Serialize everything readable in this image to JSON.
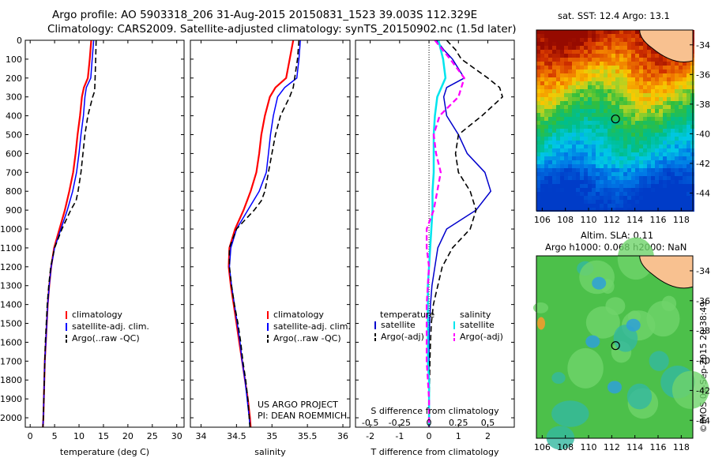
{
  "header": {
    "line1": "Argo profile: AO 5903318_206 31-Aug-2015 20150831_1523 39.003S 112.329E",
    "line2": "Climatology: CARS2009. Satellite-adjusted climatology: synTS_20150902.nc (1.5d later)"
  },
  "colors": {
    "climatology": "#ff0000",
    "satellite": "#0000ff",
    "argo": "#000000",
    "temp_diff_sat": "#0000cc",
    "sal_diff_sat": "#00e5ee",
    "sal_diff_argo": "#ff00ff",
    "land": "#f8c190"
  },
  "chart_data": [
    {
      "type": "line",
      "panel": "temperature",
      "xlabel": "temperature (deg C)",
      "ylabel": "",
      "xlim": [
        -1,
        31.5
      ],
      "ylim": [
        2050,
        0
      ],
      "xticks": [
        0,
        5,
        10,
        15,
        20,
        25,
        30
      ],
      "yticks": [
        0,
        100,
        200,
        300,
        400,
        500,
        600,
        700,
        800,
        900,
        1000,
        1100,
        1200,
        1300,
        1400,
        1500,
        1600,
        1700,
        1800,
        1900,
        2000
      ],
      "legend": [
        "climatology",
        "satellite-adj. clim.",
        "Argo(..raw -QC)"
      ],
      "series": [
        {
          "name": "climatology",
          "depth": [
            0,
            100,
            200,
            250,
            300,
            400,
            500,
            600,
            700,
            800,
            900,
            1000,
            1100,
            1200,
            1300,
            1400,
            1500,
            1600,
            1700,
            1800,
            1900,
            2000,
            2050
          ],
          "values": [
            12.5,
            12.2,
            11.8,
            11.0,
            10.6,
            10.2,
            9.7,
            9.3,
            8.8,
            8.0,
            7.1,
            6.0,
            4.9,
            4.3,
            3.9,
            3.6,
            3.4,
            3.2,
            3.0,
            2.9,
            2.8,
            2.7,
            2.6
          ]
        },
        {
          "name": "satellite-adj. clim.",
          "depth": [
            0,
            100,
            200,
            250,
            300,
            400,
            500,
            600,
            700,
            800,
            900,
            1000,
            1100,
            1200,
            1300,
            1400,
            1500,
            1600,
            1700,
            1800,
            1900,
            2000,
            2050
          ],
          "values": [
            13.0,
            12.7,
            12.4,
            11.5,
            11.2,
            10.9,
            10.4,
            10.0,
            9.5,
            8.7,
            7.6,
            6.3,
            5.0,
            4.3,
            3.9,
            3.6,
            3.4,
            3.2,
            3.0,
            2.9,
            2.8,
            2.7,
            2.6
          ]
        },
        {
          "name": "Argo(..raw -QC)",
          "depth": [
            0,
            100,
            200,
            270,
            300,
            400,
            500,
            600,
            700,
            800,
            850,
            900,
            1000,
            1100,
            1200,
            1300,
            1400,
            1500,
            1600,
            1700,
            1800,
            1900,
            2000,
            2050
          ],
          "values": [
            13.5,
            13.4,
            13.3,
            13.2,
            12.8,
            11.8,
            11.2,
            10.8,
            10.4,
            9.8,
            9.4,
            8.3,
            6.5,
            5.0,
            4.2,
            3.8,
            3.5,
            3.3,
            3.1,
            3.0,
            2.9,
            2.8,
            2.7,
            2.6
          ]
        }
      ]
    },
    {
      "type": "line",
      "panel": "salinity",
      "xlabel": "salinity",
      "xlim": [
        33.85,
        36.1
      ],
      "ylim": [
        2050,
        0
      ],
      "xticks": [
        34,
        34.5,
        35,
        35.5,
        36
      ],
      "legend": [
        "climatology",
        "satellite-adj. clim.",
        "Argo(..raw -QC)"
      ],
      "series": [
        {
          "name": "climatology",
          "depth": [
            0,
            100,
            200,
            250,
            300,
            400,
            500,
            600,
            700,
            800,
            900,
            1000,
            1100,
            1200,
            1300,
            1400,
            1500,
            1600,
            1700,
            1800,
            1900,
            2000,
            2050
          ],
          "values": [
            35.3,
            35.25,
            35.2,
            35.05,
            34.97,
            34.9,
            34.85,
            34.82,
            34.78,
            34.7,
            34.6,
            34.48,
            34.4,
            34.39,
            34.42,
            34.46,
            34.5,
            34.54,
            34.58,
            34.62,
            34.66,
            34.69,
            34.7
          ]
        },
        {
          "name": "satellite-adj. clim.",
          "depth": [
            0,
            100,
            200,
            250,
            300,
            400,
            500,
            600,
            700,
            800,
            900,
            1000,
            1100,
            1200,
            1300,
            1400,
            1500,
            1600,
            1700,
            1800,
            1900,
            2000,
            2050
          ],
          "values": [
            35.4,
            35.38,
            35.35,
            35.18,
            35.08,
            35.02,
            34.98,
            34.95,
            34.92,
            34.82,
            34.66,
            34.5,
            34.42,
            34.4,
            34.43,
            34.47,
            34.51,
            34.55,
            34.58,
            34.62,
            34.65,
            34.68,
            34.69
          ]
        },
        {
          "name": "Argo(..raw -QC)",
          "depth": [
            0,
            100,
            200,
            250,
            300,
            400,
            500,
            600,
            700,
            800,
            850,
            900,
            1000,
            1100,
            1200,
            1300,
            1400,
            1500,
            1600,
            1700,
            1800,
            1900,
            2000,
            2050
          ],
          "values": [
            35.38,
            35.36,
            35.32,
            35.3,
            35.25,
            35.12,
            35.05,
            35.0,
            34.95,
            34.9,
            34.85,
            34.75,
            34.5,
            34.4,
            34.4,
            34.43,
            34.47,
            34.52,
            34.56,
            34.59,
            34.63,
            34.66,
            34.68,
            34.69
          ]
        }
      ]
    },
    {
      "type": "line",
      "panel": "difference",
      "xlabel": "T difference from climatology",
      "xlabel_top": "S difference from climatology",
      "xlim": [
        -2.5,
        2.9
      ],
      "ylim": [
        2050,
        0
      ],
      "xticks": [
        -2,
        -1,
        0,
        1,
        2
      ],
      "sticks": [
        "-0.5",
        "-0.25",
        "0",
        "0.25",
        "0.5"
      ],
      "legend_temperature_title": "temperature",
      "legend_salinity_title": "salinity",
      "legend_entries": [
        "satellite",
        "Argo(-adj)",
        "satellite",
        "Argo(-adj)"
      ],
      "series": [
        {
          "name": "T satellite",
          "depth": [
            0,
            50,
            100,
            200,
            250,
            300,
            400,
            500,
            600,
            700,
            800,
            900,
            1000,
            1100,
            1200,
            1300,
            1400,
            1500,
            1600,
            1700,
            1800,
            1900,
            2000,
            2050
          ],
          "values": [
            0.25,
            0.5,
            0.8,
            1.2,
            0.6,
            0.5,
            0.6,
            1.0,
            1.3,
            1.9,
            2.1,
            1.6,
            0.6,
            0.3,
            0.2,
            0.1,
            0.05,
            0.02,
            0.0,
            0.0,
            0.0,
            0.0,
            0.0,
            0.0
          ]
        },
        {
          "name": "T Argo(-adj)",
          "depth": [
            0,
            50,
            100,
            200,
            250,
            300,
            400,
            500,
            600,
            700,
            800,
            900,
            1000,
            1100,
            1200,
            1300,
            1400,
            1500,
            1600,
            1700,
            1800,
            1900,
            2000,
            2050
          ],
          "values": [
            0.6,
            0.9,
            1.1,
            2.0,
            2.4,
            2.5,
            1.8,
            1.0,
            0.9,
            1.0,
            1.4,
            1.6,
            1.4,
            0.8,
            0.45,
            0.3,
            0.15,
            0.08,
            0.05,
            0.03,
            0.02,
            0.0,
            0.0,
            0.0
          ]
        },
        {
          "name": "S satellite",
          "depth": [
            0,
            100,
            200,
            300,
            400,
            500,
            600,
            700,
            800,
            900,
            1000,
            1100,
            1200,
            1300,
            1400,
            1500,
            1600,
            1700,
            1800,
            1900,
            2000,
            2050
          ],
          "values": [
            0.08,
            0.12,
            0.14,
            0.07,
            0.05,
            0.04,
            0.04,
            0.04,
            0.03,
            0.03,
            0.02,
            0.01,
            0.0,
            -0.01,
            -0.01,
            -0.01,
            -0.01,
            -0.01,
            0.0,
            0.0,
            0.0,
            0.0
          ]
        },
        {
          "name": "S Argo(-adj)",
          "depth": [
            0,
            100,
            200,
            300,
            400,
            500,
            600,
            700,
            800,
            900,
            1000,
            1100,
            1200,
            1300,
            1400,
            1500,
            1600,
            1700,
            1800,
            1900,
            2000,
            2050
          ],
          "values": [
            0.05,
            0.18,
            0.3,
            0.25,
            0.09,
            0.04,
            0.06,
            0.1,
            0.07,
            0.04,
            -0.02,
            -0.02,
            0.0,
            -0.01,
            -0.02,
            -0.02,
            -0.02,
            -0.02,
            -0.01,
            0.0,
            0.0,
            0.0
          ]
        }
      ]
    },
    {
      "type": "heatmap",
      "panel": "sst_map",
      "title": "sat. SST: 12.4  Argo: 13.1",
      "xlim": [
        105.5,
        119
      ],
      "ylim": [
        -45.2,
        -33
      ],
      "xticks": [
        106,
        108,
        110,
        112,
        114,
        116,
        118
      ],
      "yticks": [
        -34,
        -36,
        -38,
        -40,
        -42,
        -44
      ],
      "marker": {
        "lon": 112.329,
        "lat": -39.003
      }
    },
    {
      "type": "heatmap",
      "panel": "sla_map",
      "title_line1": "Altim. SLA: 0.11",
      "title_line2": "Argo h1000: 0.068 h2000: NaN",
      "xlim": [
        105.5,
        119
      ],
      "ylim": [
        -45.2,
        -33
      ],
      "xticks": [
        106,
        108,
        110,
        112,
        114,
        116,
        118
      ],
      "yticks": [
        -34,
        -36,
        -38,
        -40,
        -42,
        -44
      ],
      "marker": {
        "lon": 112.329,
        "lat": -39.003
      }
    }
  ],
  "credits": {
    "project_line1": "US ARGO PROJECT",
    "project_line2": "PI: DEAN ROEMMICH",
    "imos_stamp": "©IMOS 09-Sep-2015 20:38:49"
  }
}
